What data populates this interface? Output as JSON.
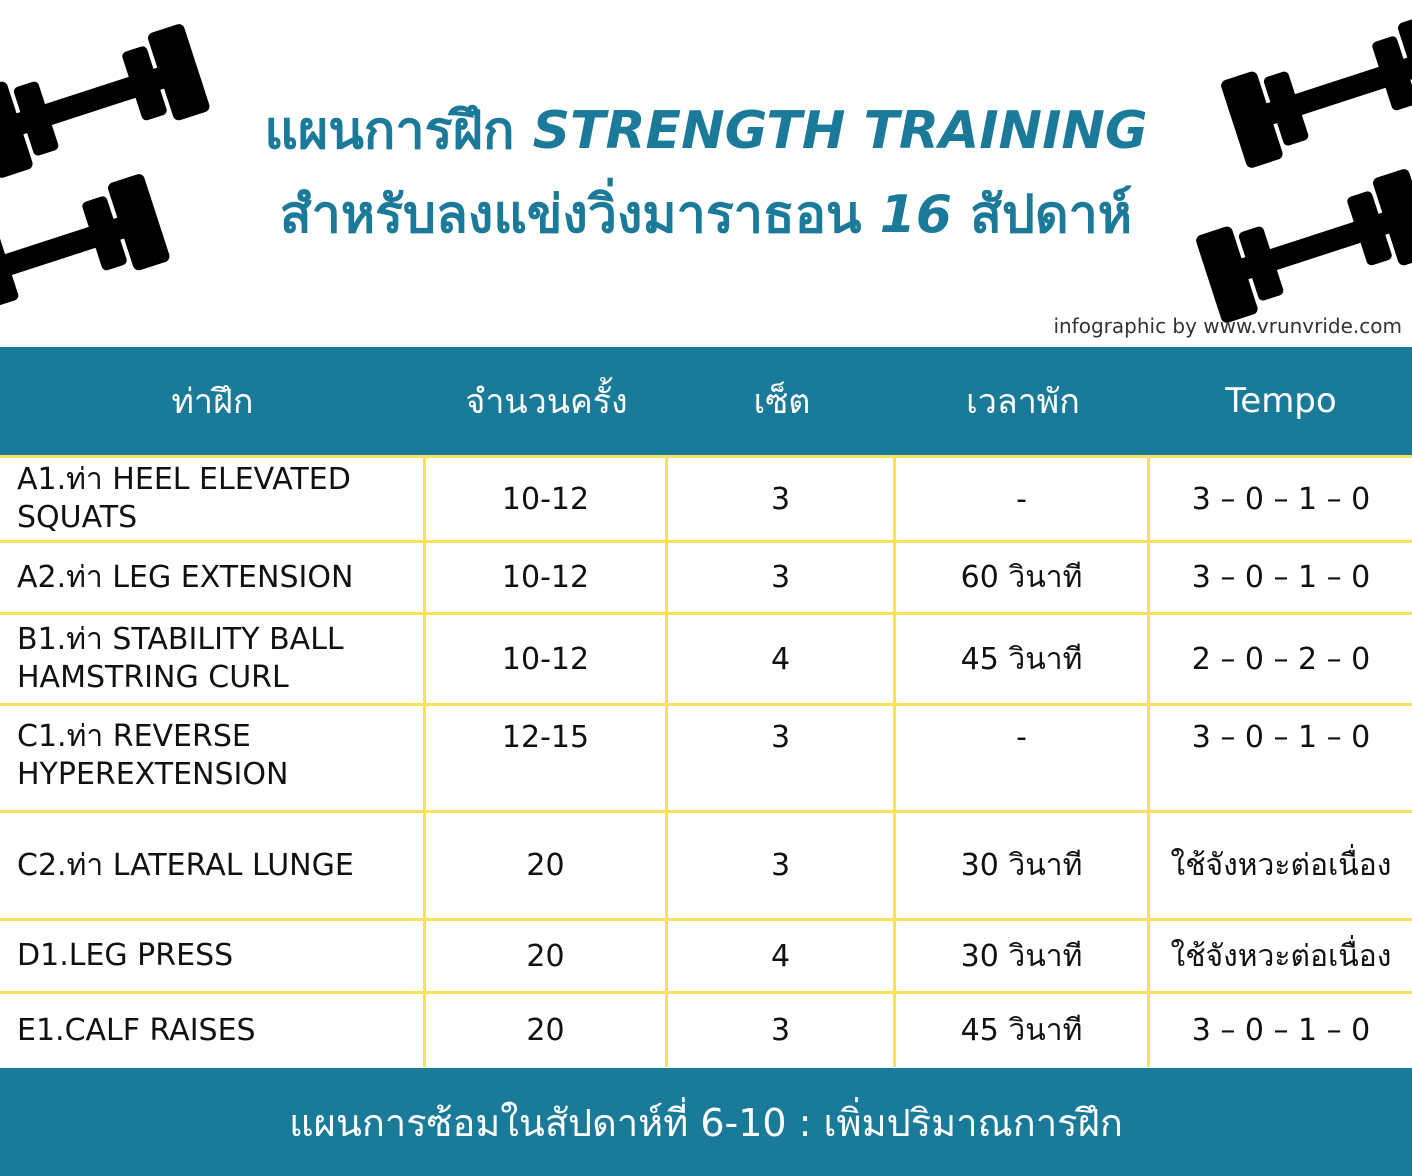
{
  "title": {
    "line1_thai": "แผนการฝึก",
    "line1_en": "STRENGTH TRAINING",
    "line2_thai": "สำหรับลงแข่งวิ่งมาราธอน",
    "line2_num": "16",
    "line2_end": "สัปดาห์"
  },
  "credit": "infographic by www.vrunvride.com",
  "colors": {
    "accent": "#1a7a99",
    "divider": "#f9e05a",
    "icon": "#000000"
  },
  "icons": [
    "dumbbell-icon"
  ],
  "table": {
    "headers": [
      "ท่าฝึก",
      "จำนวนครั้ง",
      "เซ็ต",
      "เวลาพัก",
      "Tempo"
    ],
    "rows": [
      [
        "A1.ท่า HEEL ELEVATED SQUATS",
        "10-12",
        "3",
        "-",
        "3 – 0 – 1 – 0"
      ],
      [
        "A2.ท่า LEG EXTENSION",
        "10-12",
        "3",
        "60 วินาที",
        "3 – 0 – 1 – 0"
      ],
      [
        "B1.ท่า STABILITY BALL HAMSTRING CURL",
        "10-12",
        "4",
        "45 วินาที",
        "2 – 0 – 2 – 0"
      ],
      [
        "C1.ท่า REVERSE HYPEREXTENSION",
        "12-15",
        "3",
        "-",
        "3 – 0 – 1 – 0"
      ],
      [
        "C2.ท่า LATERAL LUNGE",
        "20",
        "3",
        "30 วินาที",
        "ใช้จังหวะต่อเนื่อง"
      ],
      [
        "D1.LEG PRESS",
        "20",
        "4",
        "30 วินาที",
        "ใช้จังหวะต่อเนื่อง"
      ],
      [
        "E1.CALF RAISES",
        "20",
        "3",
        "45 วินาที",
        "3 – 0 – 1 – 0"
      ]
    ]
  },
  "footer": "แผนการซ้อมในสัปดาห์ที่ 6-10 : เพิ่มปริมาณการฝึก"
}
